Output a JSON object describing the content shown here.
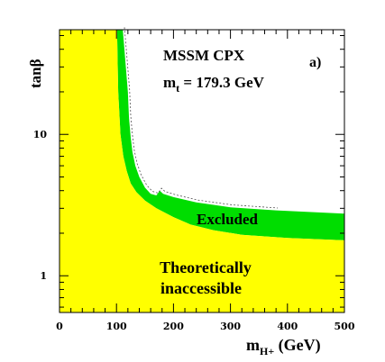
{
  "chart_data": {
    "type": "area",
    "title": "MSSM CPX",
    "subtitle_main": "m",
    "subtitle_sub": "t",
    "subtitle_rest": " = 179.3 GeV",
    "panel_label": "a)",
    "xlabel_main": "m",
    "xlabel_sub": "H+",
    "xlabel_rest": " (GeV)",
    "ylabel": "tanβ",
    "xlim": [
      0,
      500
    ],
    "ylim": [
      0.55,
      55
    ],
    "y_scale": "log",
    "x_ticks": [
      0,
      100,
      200,
      300,
      400,
      500
    ],
    "x_tick_labels": [
      "0",
      "100",
      "200",
      "300",
      "400",
      "500"
    ],
    "y_ticks": [
      1,
      10
    ],
    "y_tick_labels": [
      "1",
      "10"
    ],
    "colors": {
      "theoretical": "#ffff00",
      "excluded": "#00dd00",
      "background": "#ffffff",
      "contour": "#555555"
    },
    "regions": [
      {
        "name": "Theoretically inaccessible",
        "label_line1": "Theoretically",
        "label_line2": "inaccessible",
        "boundary": [
          [
            0,
            55
          ],
          [
            101,
            55
          ],
          [
            103,
            20
          ],
          [
            107,
            10
          ],
          [
            112,
            7
          ],
          [
            118,
            5.5
          ],
          [
            125,
            4.5
          ],
          [
            135,
            3.9
          ],
          [
            150,
            3.4
          ],
          [
            170,
            3.0
          ],
          [
            200,
            2.6
          ],
          [
            230,
            2.3
          ],
          [
            270,
            2.1
          ],
          [
            320,
            1.95
          ],
          [
            400,
            1.85
          ],
          [
            500,
            1.78
          ]
        ]
      },
      {
        "name": "Excluded",
        "label": "Excluded",
        "upper_boundary": [
          [
            111,
            55
          ],
          [
            120,
            20
          ],
          [
            122,
            13
          ],
          [
            125,
            9.5
          ],
          [
            128,
            7.5
          ],
          [
            133,
            6.0
          ],
          [
            140,
            5.0
          ],
          [
            150,
            4.2
          ],
          [
            160,
            3.8
          ],
          [
            170,
            3.7
          ],
          [
            176,
            4.0
          ],
          [
            182,
            3.8
          ],
          [
            200,
            3.6
          ],
          [
            240,
            3.3
          ],
          [
            300,
            3.05
          ],
          [
            380,
            2.9
          ],
          [
            500,
            2.75
          ]
        ]
      }
    ]
  }
}
